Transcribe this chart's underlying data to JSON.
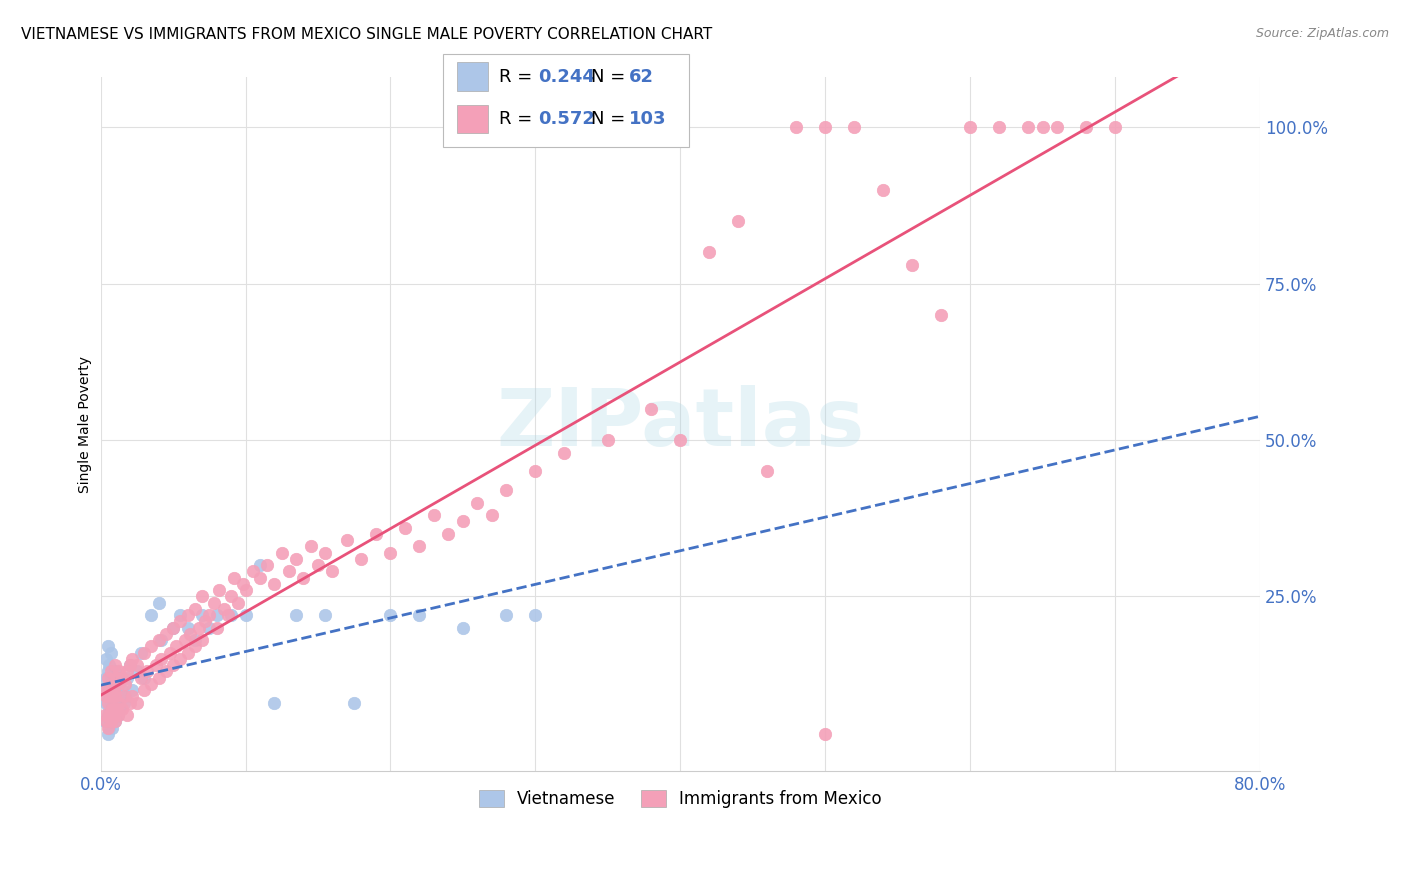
{
  "title": "VIETNAMESE VS IMMIGRANTS FROM MEXICO SINGLE MALE POVERTY CORRELATION CHART",
  "source": "Source: ZipAtlas.com",
  "ylabel": "Single Male Poverty",
  "legend_entries": [
    {
      "label": "Vietnamese",
      "R": "0.244",
      "N": "62",
      "color": "#adc6e8",
      "line_color": "#4472c4",
      "line_style": "dashed"
    },
    {
      "label": "Immigrants from Mexico",
      "R": "0.572",
      "N": "103",
      "color": "#f4a0b8",
      "line_color": "#e8527a",
      "line_style": "solid"
    }
  ],
  "background_color": "#ffffff",
  "grid_color": "#e0e0e0",
  "watermark": "ZIPatlas",
  "tick_label_color": "#4472c4",
  "xlim": [
    0.0,
    0.8
  ],
  "ylim": [
    -0.03,
    1.08
  ],
  "viet_x": [
    0.003,
    0.003,
    0.004,
    0.004,
    0.004,
    0.005,
    0.005,
    0.005,
    0.005,
    0.005,
    0.006,
    0.006,
    0.006,
    0.006,
    0.007,
    0.007,
    0.007,
    0.007,
    0.008,
    0.008,
    0.008,
    0.009,
    0.009,
    0.01,
    0.01,
    0.01,
    0.011,
    0.012,
    0.012,
    0.013,
    0.013,
    0.015,
    0.016,
    0.017,
    0.018,
    0.02,
    0.022,
    0.025,
    0.028,
    0.03,
    0.035,
    0.04,
    0.042,
    0.05,
    0.055,
    0.06,
    0.065,
    0.07,
    0.075,
    0.08,
    0.09,
    0.1,
    0.11,
    0.12,
    0.135,
    0.155,
    0.175,
    0.2,
    0.22,
    0.25,
    0.28,
    0.3
  ],
  "viet_y": [
    0.05,
    0.1,
    0.08,
    0.12,
    0.15,
    0.03,
    0.06,
    0.09,
    0.13,
    0.17,
    0.04,
    0.07,
    0.1,
    0.14,
    0.05,
    0.08,
    0.12,
    0.16,
    0.04,
    0.07,
    0.11,
    0.06,
    0.1,
    0.05,
    0.09,
    0.13,
    0.08,
    0.06,
    0.12,
    0.07,
    0.11,
    0.1,
    0.08,
    0.09,
    0.12,
    0.14,
    0.1,
    0.13,
    0.16,
    0.12,
    0.22,
    0.24,
    0.18,
    0.2,
    0.22,
    0.2,
    0.18,
    0.22,
    0.2,
    0.22,
    0.22,
    0.22,
    0.3,
    0.08,
    0.22,
    0.22,
    0.08,
    0.22,
    0.22,
    0.2,
    0.22,
    0.22
  ],
  "mex_x": [
    0.003,
    0.003,
    0.004,
    0.004,
    0.005,
    0.005,
    0.005,
    0.006,
    0.006,
    0.007,
    0.007,
    0.007,
    0.008,
    0.008,
    0.009,
    0.009,
    0.01,
    0.01,
    0.01,
    0.011,
    0.011,
    0.012,
    0.012,
    0.013,
    0.013,
    0.015,
    0.015,
    0.016,
    0.017,
    0.018,
    0.018,
    0.02,
    0.02,
    0.022,
    0.022,
    0.025,
    0.025,
    0.028,
    0.03,
    0.03,
    0.032,
    0.035,
    0.035,
    0.038,
    0.04,
    0.04,
    0.042,
    0.045,
    0.045,
    0.048,
    0.05,
    0.05,
    0.052,
    0.055,
    0.055,
    0.058,
    0.06,
    0.06,
    0.062,
    0.065,
    0.065,
    0.068,
    0.07,
    0.07,
    0.072,
    0.075,
    0.078,
    0.08,
    0.082,
    0.085,
    0.088,
    0.09,
    0.092,
    0.095,
    0.098,
    0.1,
    0.105,
    0.11,
    0.115,
    0.12,
    0.125,
    0.13,
    0.135,
    0.14,
    0.145,
    0.15,
    0.155,
    0.16,
    0.17,
    0.18,
    0.19,
    0.2,
    0.21,
    0.22,
    0.23,
    0.24,
    0.25,
    0.26,
    0.27,
    0.28,
    0.3,
    0.32,
    0.35
  ],
  "mex_y": [
    0.06,
    0.1,
    0.05,
    0.09,
    0.04,
    0.08,
    0.12,
    0.06,
    0.1,
    0.05,
    0.09,
    0.13,
    0.07,
    0.11,
    0.06,
    0.1,
    0.05,
    0.09,
    0.14,
    0.07,
    0.12,
    0.06,
    0.11,
    0.08,
    0.13,
    0.07,
    0.12,
    0.09,
    0.11,
    0.06,
    0.13,
    0.08,
    0.14,
    0.09,
    0.15,
    0.08,
    0.14,
    0.12,
    0.1,
    0.16,
    0.13,
    0.11,
    0.17,
    0.14,
    0.12,
    0.18,
    0.15,
    0.13,
    0.19,
    0.16,
    0.14,
    0.2,
    0.17,
    0.15,
    0.21,
    0.18,
    0.16,
    0.22,
    0.19,
    0.17,
    0.23,
    0.2,
    0.18,
    0.25,
    0.21,
    0.22,
    0.24,
    0.2,
    0.26,
    0.23,
    0.22,
    0.25,
    0.28,
    0.24,
    0.27,
    0.26,
    0.29,
    0.28,
    0.3,
    0.27,
    0.32,
    0.29,
    0.31,
    0.28,
    0.33,
    0.3,
    0.32,
    0.29,
    0.34,
    0.31,
    0.35,
    0.32,
    0.36,
    0.33,
    0.38,
    0.35,
    0.37,
    0.4,
    0.38,
    0.42,
    0.45,
    0.48,
    0.5
  ],
  "mex_extra_x": [
    0.38,
    0.4,
    0.42,
    0.44,
    0.46,
    0.48,
    0.5,
    0.52,
    0.54,
    0.56,
    0.58,
    0.6,
    0.62,
    0.64,
    0.65,
    0.66,
    0.68,
    0.7,
    0.5
  ],
  "mex_extra_y": [
    0.55,
    0.5,
    0.8,
    0.85,
    0.45,
    1.0,
    1.0,
    1.0,
    0.9,
    0.78,
    0.7,
    1.0,
    1.0,
    1.0,
    1.0,
    1.0,
    1.0,
    1.0,
    0.03
  ]
}
